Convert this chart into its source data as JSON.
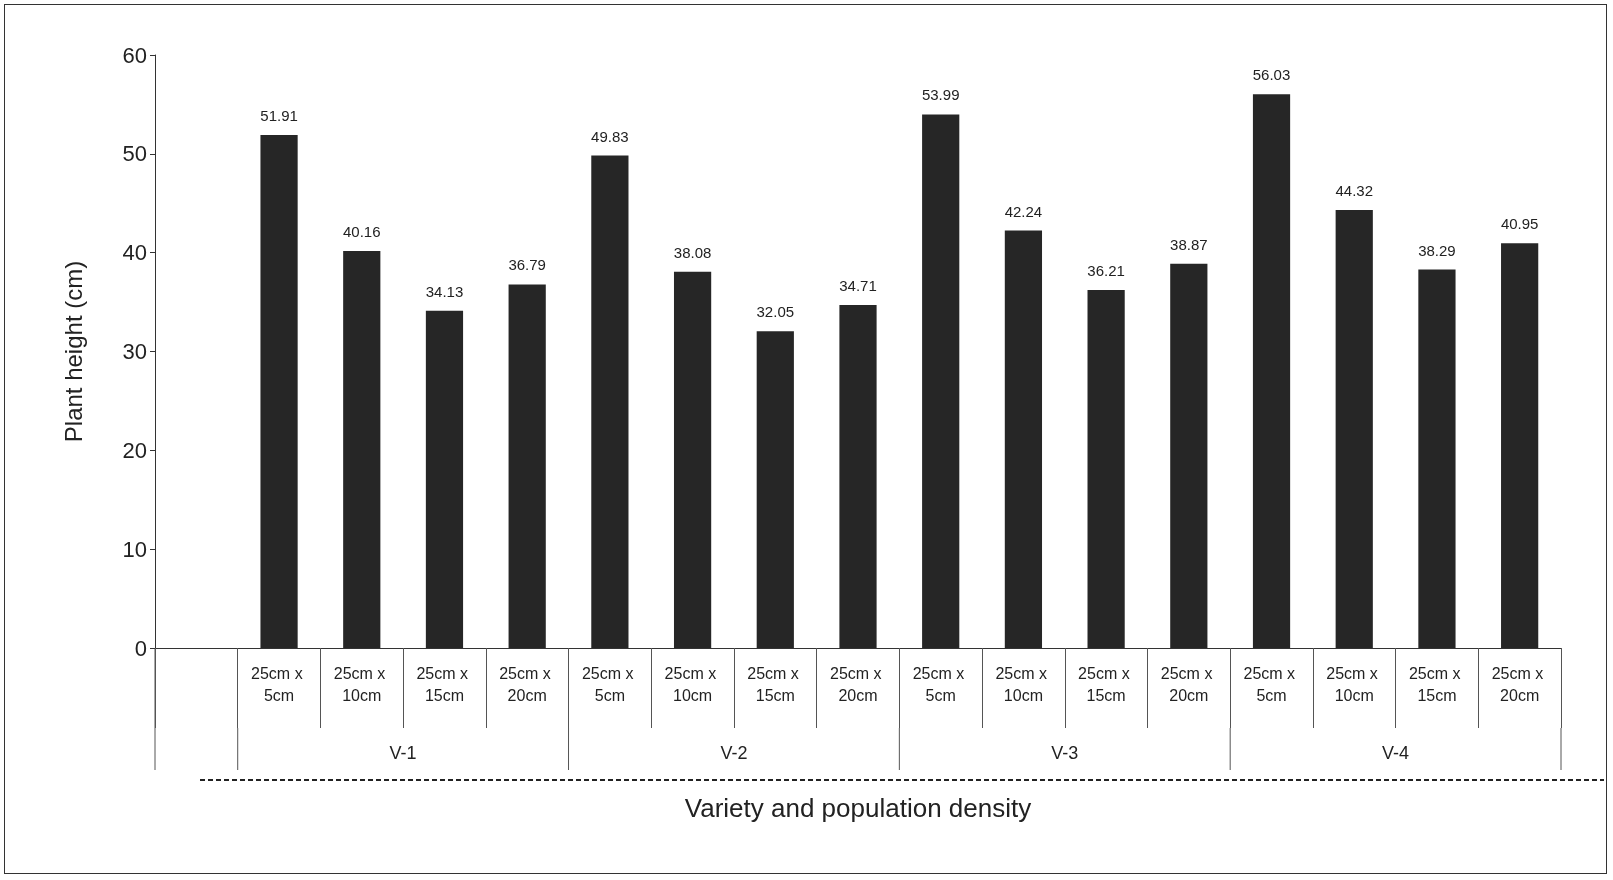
{
  "chart_data": {
    "type": "bar",
    "ylabel": "Plant height (cm)",
    "xlabel": "Variety and population density",
    "categories": [
      null,
      "25cm x 5cm",
      "25cm x 10cm",
      "25cm x 15cm",
      "25cm x 20cm",
      "25cm x 5cm",
      "25cm x 10cm",
      "25cm x 15cm",
      "25cm x 20cm",
      "25cm x 5cm",
      "25cm x 10cm",
      "25cm x 15cm",
      "25cm x 20cm",
      "25cm x 5cm",
      "25cm x 10cm",
      "25cm x 15cm",
      "25cm x 20cm"
    ],
    "values": [
      null,
      51.91,
      40.16,
      34.13,
      36.79,
      49.83,
      38.08,
      32.05,
      34.71,
      53.99,
      42.24,
      36.21,
      38.87,
      56.03,
      44.32,
      38.29,
      40.95
    ],
    "color": "#262626",
    "data_labels": true,
    "annotations": [
      "V-1",
      "V-2",
      "V-3",
      "V-4"
    ],
    "ylim": [
      0,
      60
    ],
    "yticks": [
      0,
      10,
      20,
      30,
      40,
      50,
      60
    ],
    "grid": false
  }
}
